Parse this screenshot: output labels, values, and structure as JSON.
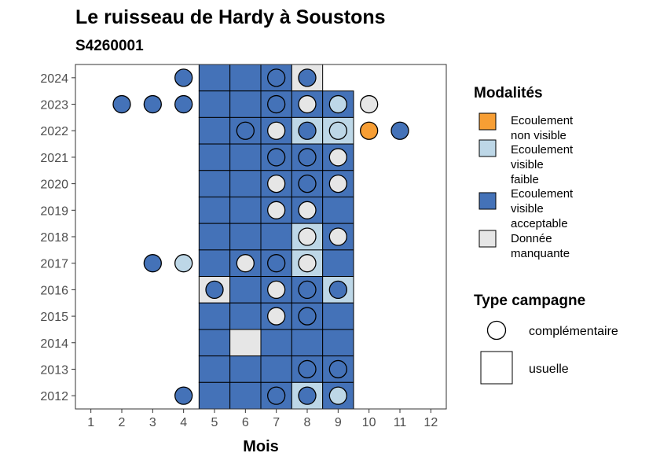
{
  "chart_data": {
    "type": "heatmap",
    "title": "Le ruisseau de Hardy à Soustons",
    "subtitle": "S4260001",
    "xlabel": "Mois",
    "ylabel": "",
    "x_ticks": [
      "1",
      "2",
      "3",
      "4",
      "5",
      "6",
      "7",
      "8",
      "9",
      "10",
      "11",
      "12"
    ],
    "y_ticks": [
      "2012",
      "2013",
      "2014",
      "2015",
      "2016",
      "2017",
      "2018",
      "2019",
      "2020",
      "2021",
      "2022",
      "2023",
      "2024"
    ],
    "xlim": [
      0.5,
      12.5
    ],
    "ylim": [
      2011.5,
      2024.5
    ],
    "grid": false,
    "colors": {
      "non_visible": "#F79E34",
      "faible": "#BDD7E7",
      "acceptable": "#4472B8",
      "manquante": "#E6E6E6"
    },
    "legend": {
      "placement": "right",
      "modalites_title": "Modalités",
      "modalites": [
        {
          "key": "non_visible",
          "lines": [
            "Ecoulement",
            "non visible"
          ]
        },
        {
          "key": "faible",
          "lines": [
            "Ecoulement",
            "visible",
            "faible"
          ]
        },
        {
          "key": "acceptable",
          "lines": [
            "Ecoulement",
            "visible",
            "acceptable"
          ]
        },
        {
          "key": "manquante",
          "lines": [
            "Donnée",
            "manquante"
          ]
        }
      ],
      "campagne_title": "Type campagne",
      "campagne": [
        {
          "shape": "circle",
          "label": "complémentaire"
        },
        {
          "shape": "square",
          "label": "usuelle"
        }
      ]
    },
    "usuelle": [
      {
        "year": 2024,
        "month": 5,
        "value": "acceptable"
      },
      {
        "year": 2024,
        "month": 6,
        "value": "acceptable"
      },
      {
        "year": 2024,
        "month": 7,
        "value": "acceptable"
      },
      {
        "year": 2024,
        "month": 8,
        "value": "manquante"
      },
      {
        "year": 2023,
        "month": 5,
        "value": "acceptable"
      },
      {
        "year": 2023,
        "month": 6,
        "value": "acceptable"
      },
      {
        "year": 2023,
        "month": 7,
        "value": "acceptable"
      },
      {
        "year": 2023,
        "month": 8,
        "value": "acceptable"
      },
      {
        "year": 2023,
        "month": 9,
        "value": "acceptable"
      },
      {
        "year": 2022,
        "month": 5,
        "value": "acceptable"
      },
      {
        "year": 2022,
        "month": 6,
        "value": "acceptable"
      },
      {
        "year": 2022,
        "month": 7,
        "value": "acceptable"
      },
      {
        "year": 2022,
        "month": 8,
        "value": "faible"
      },
      {
        "year": 2022,
        "month": 9,
        "value": "faible"
      },
      {
        "year": 2021,
        "month": 5,
        "value": "acceptable"
      },
      {
        "year": 2021,
        "month": 6,
        "value": "acceptable"
      },
      {
        "year": 2021,
        "month": 7,
        "value": "acceptable"
      },
      {
        "year": 2021,
        "month": 8,
        "value": "acceptable"
      },
      {
        "year": 2021,
        "month": 9,
        "value": "acceptable"
      },
      {
        "year": 2020,
        "month": 5,
        "value": "acceptable"
      },
      {
        "year": 2020,
        "month": 6,
        "value": "acceptable"
      },
      {
        "year": 2020,
        "month": 7,
        "value": "acceptable"
      },
      {
        "year": 2020,
        "month": 8,
        "value": "acceptable"
      },
      {
        "year": 2020,
        "month": 9,
        "value": "acceptable"
      },
      {
        "year": 2019,
        "month": 5,
        "value": "acceptable"
      },
      {
        "year": 2019,
        "month": 6,
        "value": "acceptable"
      },
      {
        "year": 2019,
        "month": 7,
        "value": "acceptable"
      },
      {
        "year": 2019,
        "month": 8,
        "value": "acceptable"
      },
      {
        "year": 2019,
        "month": 9,
        "value": "acceptable"
      },
      {
        "year": 2018,
        "month": 5,
        "value": "acceptable"
      },
      {
        "year": 2018,
        "month": 6,
        "value": "acceptable"
      },
      {
        "year": 2018,
        "month": 7,
        "value": "acceptable"
      },
      {
        "year": 2018,
        "month": 8,
        "value": "faible"
      },
      {
        "year": 2018,
        "month": 9,
        "value": "acceptable"
      },
      {
        "year": 2017,
        "month": 5,
        "value": "acceptable"
      },
      {
        "year": 2017,
        "month": 6,
        "value": "acceptable"
      },
      {
        "year": 2017,
        "month": 7,
        "value": "acceptable"
      },
      {
        "year": 2017,
        "month": 8,
        "value": "faible"
      },
      {
        "year": 2017,
        "month": 9,
        "value": "acceptable"
      },
      {
        "year": 2016,
        "month": 5,
        "value": "manquante"
      },
      {
        "year": 2016,
        "month": 6,
        "value": "acceptable"
      },
      {
        "year": 2016,
        "month": 7,
        "value": "acceptable"
      },
      {
        "year": 2016,
        "month": 8,
        "value": "acceptable"
      },
      {
        "year": 2016,
        "month": 9,
        "value": "faible"
      },
      {
        "year": 2015,
        "month": 5,
        "value": "acceptable"
      },
      {
        "year": 2015,
        "month": 6,
        "value": "acceptable"
      },
      {
        "year": 2015,
        "month": 7,
        "value": "acceptable"
      },
      {
        "year": 2015,
        "month": 8,
        "value": "acceptable"
      },
      {
        "year": 2015,
        "month": 9,
        "value": "acceptable"
      },
      {
        "year": 2014,
        "month": 5,
        "value": "acceptable"
      },
      {
        "year": 2014,
        "month": 6,
        "value": "manquante"
      },
      {
        "year": 2014,
        "month": 7,
        "value": "acceptable"
      },
      {
        "year": 2014,
        "month": 8,
        "value": "acceptable"
      },
      {
        "year": 2014,
        "month": 9,
        "value": "acceptable"
      },
      {
        "year": 2013,
        "month": 5,
        "value": "acceptable"
      },
      {
        "year": 2013,
        "month": 6,
        "value": "acceptable"
      },
      {
        "year": 2013,
        "month": 7,
        "value": "acceptable"
      },
      {
        "year": 2013,
        "month": 8,
        "value": "acceptable"
      },
      {
        "year": 2013,
        "month": 9,
        "value": "acceptable"
      },
      {
        "year": 2012,
        "month": 5,
        "value": "acceptable"
      },
      {
        "year": 2012,
        "month": 6,
        "value": "acceptable"
      },
      {
        "year": 2012,
        "month": 7,
        "value": "acceptable"
      },
      {
        "year": 2012,
        "month": 8,
        "value": "faible"
      },
      {
        "year": 2012,
        "month": 9,
        "value": "acceptable"
      }
    ],
    "complementaire": [
      {
        "year": 2024,
        "month": 4,
        "value": "acceptable"
      },
      {
        "year": 2024,
        "month": 7,
        "value": "acceptable"
      },
      {
        "year": 2024,
        "month": 8,
        "value": "acceptable"
      },
      {
        "year": 2023,
        "month": 2,
        "value": "acceptable"
      },
      {
        "year": 2023,
        "month": 3,
        "value": "acceptable"
      },
      {
        "year": 2023,
        "month": 4,
        "value": "acceptable"
      },
      {
        "year": 2023,
        "month": 7,
        "value": "acceptable"
      },
      {
        "year": 2023,
        "month": 8,
        "value": "manquante"
      },
      {
        "year": 2023,
        "month": 9,
        "value": "faible"
      },
      {
        "year": 2023,
        "month": 10,
        "value": "manquante"
      },
      {
        "year": 2022,
        "month": 6,
        "value": "acceptable"
      },
      {
        "year": 2022,
        "month": 7,
        "value": "manquante"
      },
      {
        "year": 2022,
        "month": 8,
        "value": "acceptable"
      },
      {
        "year": 2022,
        "month": 9,
        "value": "faible"
      },
      {
        "year": 2022,
        "month": 10,
        "value": "non_visible"
      },
      {
        "year": 2022,
        "month": 11,
        "value": "acceptable"
      },
      {
        "year": 2021,
        "month": 7,
        "value": "acceptable"
      },
      {
        "year": 2021,
        "month": 8,
        "value": "acceptable"
      },
      {
        "year": 2021,
        "month": 9,
        "value": "manquante"
      },
      {
        "year": 2020,
        "month": 7,
        "value": "manquante"
      },
      {
        "year": 2020,
        "month": 8,
        "value": "acceptable"
      },
      {
        "year": 2020,
        "month": 9,
        "value": "manquante"
      },
      {
        "year": 2019,
        "month": 7,
        "value": "manquante"
      },
      {
        "year": 2019,
        "month": 8,
        "value": "manquante"
      },
      {
        "year": 2018,
        "month": 8,
        "value": "manquante"
      },
      {
        "year": 2018,
        "month": 9,
        "value": "manquante"
      },
      {
        "year": 2017,
        "month": 3,
        "value": "acceptable"
      },
      {
        "year": 2017,
        "month": 4,
        "value": "faible"
      },
      {
        "year": 2017,
        "month": 6,
        "value": "manquante"
      },
      {
        "year": 2017,
        "month": 7,
        "value": "acceptable"
      },
      {
        "year": 2017,
        "month": 8,
        "value": "manquante"
      },
      {
        "year": 2016,
        "month": 5,
        "value": "acceptable"
      },
      {
        "year": 2016,
        "month": 7,
        "value": "manquante"
      },
      {
        "year": 2016,
        "month": 8,
        "value": "acceptable"
      },
      {
        "year": 2016,
        "month": 9,
        "value": "acceptable"
      },
      {
        "year": 2015,
        "month": 7,
        "value": "manquante"
      },
      {
        "year": 2015,
        "month": 8,
        "value": "acceptable"
      },
      {
        "year": 2013,
        "month": 8,
        "value": "acceptable"
      },
      {
        "year": 2013,
        "month": 9,
        "value": "acceptable"
      },
      {
        "year": 2012,
        "month": 4,
        "value": "acceptable"
      },
      {
        "year": 2012,
        "month": 7,
        "value": "acceptable"
      },
      {
        "year": 2012,
        "month": 8,
        "value": "acceptable"
      },
      {
        "year": 2012,
        "month": 9,
        "value": "faible"
      }
    ]
  }
}
